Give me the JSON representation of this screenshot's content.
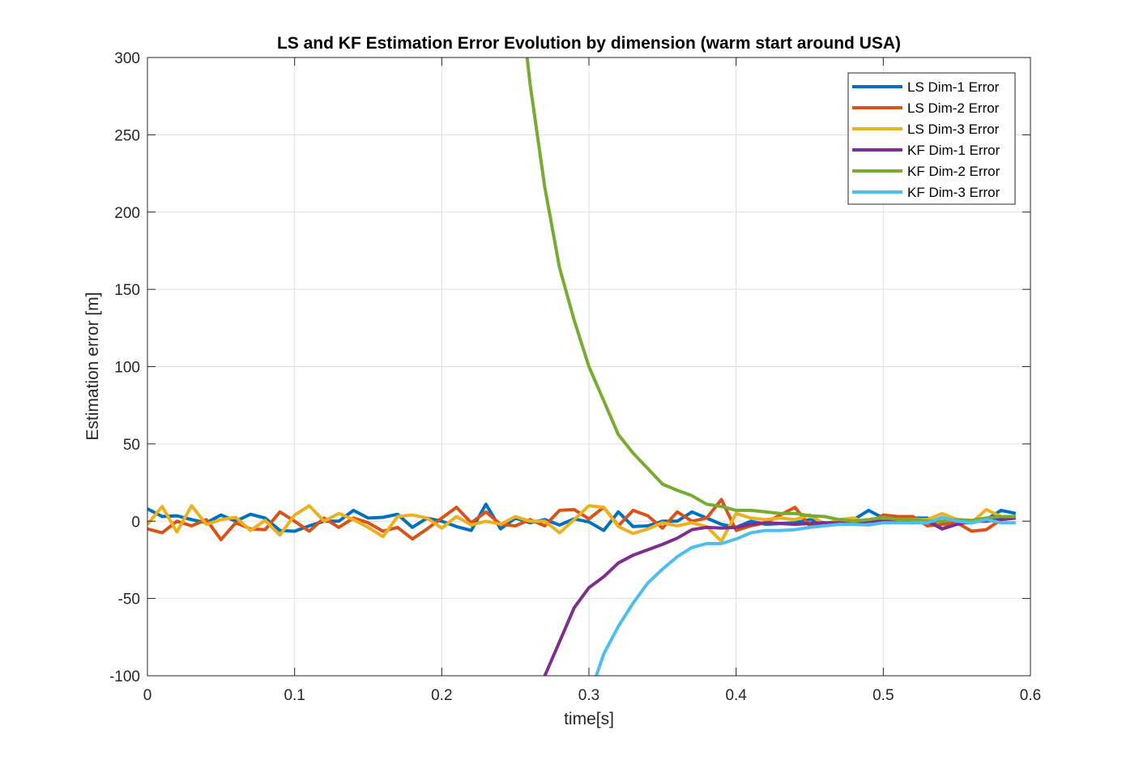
{
  "chart_data": {
    "type": "line",
    "title": "LS and KF Estimation Error Evolution by dimension (warm start around USA)",
    "xlabel": "time[s]",
    "ylabel": "Estimation error [m]",
    "xlim": [
      0,
      0.6
    ],
    "ylim": [
      -100,
      300
    ],
    "xticks": [
      0,
      0.1,
      0.2,
      0.3,
      0.4,
      0.5,
      0.6
    ],
    "yticks": [
      -100,
      -50,
      0,
      50,
      100,
      150,
      200,
      250,
      300
    ],
    "grid": true,
    "legend_position": "top-right",
    "x": [
      0,
      0.01,
      0.02,
      0.03,
      0.04,
      0.05,
      0.06,
      0.07,
      0.08,
      0.09,
      0.1,
      0.11,
      0.12,
      0.13,
      0.14,
      0.15,
      0.16,
      0.17,
      0.18,
      0.19,
      0.2,
      0.21,
      0.22,
      0.23,
      0.24,
      0.25,
      0.26,
      0.27,
      0.28,
      0.29,
      0.3,
      0.31,
      0.32,
      0.33,
      0.34,
      0.35,
      0.36,
      0.37,
      0.38,
      0.39,
      0.4,
      0.41,
      0.42,
      0.43,
      0.44,
      0.45,
      0.46,
      0.47,
      0.48,
      0.49,
      0.5,
      0.51,
      0.52,
      0.53,
      0.54,
      0.55,
      0.56,
      0.57,
      0.58,
      0.59
    ],
    "series": [
      {
        "name": "LS Dim-1 Error",
        "color": "#0072BD",
        "values": [
          8,
          3,
          3.5,
          1,
          -1,
          4,
          0,
          4.5,
          2,
          -6,
          -6.5,
          -3,
          0,
          0,
          7,
          2,
          2.5,
          4.5,
          -4,
          2,
          0,
          -3.5,
          -6,
          11,
          -5,
          2,
          -1,
          1,
          -2.5,
          1.5,
          -0.5,
          -6,
          6,
          -3.5,
          -3,
          0,
          0,
          6,
          2,
          -2,
          -4,
          0,
          -2,
          -1.5,
          -1,
          1,
          -1,
          -2,
          1,
          7,
          2,
          1.5,
          2,
          2,
          -5,
          -1,
          -1,
          1,
          7,
          5
        ]
      },
      {
        "name": "LS Dim-2 Error",
        "color": "#D95319",
        "values": [
          -5,
          -7.5,
          0,
          -3,
          1,
          -12,
          -1,
          -5,
          -5.5,
          6,
          0,
          -6.5,
          2,
          -4,
          2,
          -1,
          -6.5,
          -4,
          -11.5,
          -5,
          2,
          9,
          -1,
          6,
          -2,
          -3,
          1,
          -3,
          7,
          7.5,
          1.5,
          9,
          -3,
          7,
          3.5,
          -4.5,
          6,
          0,
          2,
          14,
          -6,
          -3,
          -1,
          4,
          9,
          -3,
          -2,
          -1,
          -1,
          -1.5,
          4,
          3,
          3,
          -3,
          -2,
          -1,
          -6.5,
          -5.5,
          1,
          3
        ]
      },
      {
        "name": "LS Dim-3 Error",
        "color": "#EDB120",
        "values": [
          -2,
          9.5,
          -7,
          10,
          -2,
          1,
          2.5,
          -6,
          0.5,
          -9,
          4,
          10,
          0,
          5,
          1,
          -4,
          -10,
          3,
          4,
          2,
          -4.5,
          3,
          -2.5,
          0,
          -2,
          3,
          0,
          0,
          -7.5,
          1,
          10,
          9,
          -3.5,
          -8,
          -5,
          -1,
          -3,
          -1,
          -3.5,
          -13,
          5,
          2,
          1,
          2,
          1,
          4,
          -2,
          1,
          2,
          -1.5,
          1,
          1,
          1,
          1,
          5,
          1,
          -1,
          7.5,
          3,
          2
        ]
      },
      {
        "name": "KF Dim-1 Error",
        "color": "#7E2F8E",
        "x": [
          0.27,
          0.28,
          0.29,
          0.3,
          0.31,
          0.32,
          0.33,
          0.34,
          0.35,
          0.36,
          0.37,
          0.38,
          0.39,
          0.4,
          0.41,
          0.42,
          0.43,
          0.44,
          0.45,
          0.46,
          0.47,
          0.48,
          0.49,
          0.5,
          0.51,
          0.52,
          0.53,
          0.54,
          0.55,
          0.56,
          0.57,
          0.58,
          0.59
        ],
        "values": [
          -100,
          -78,
          -56,
          -43,
          -36,
          -27,
          -22,
          -18.5,
          -15,
          -11,
          -5.5,
          -4,
          -4.5,
          -4,
          -2,
          -1,
          -1.5,
          -2,
          -1.5,
          -1,
          -1,
          -1.5,
          0,
          0,
          -0.5,
          -1,
          0,
          -5,
          -2,
          0,
          0,
          1,
          2
        ]
      },
      {
        "name": "KF Dim-2 Error",
        "color": "#77AC30",
        "x": [
          0.258,
          0.26,
          0.27,
          0.28,
          0.29,
          0.3,
          0.31,
          0.32,
          0.33,
          0.34,
          0.35,
          0.36,
          0.37,
          0.38,
          0.39,
          0.4,
          0.41,
          0.42,
          0.43,
          0.44,
          0.45,
          0.46,
          0.47,
          0.48,
          0.49,
          0.5,
          0.51,
          0.52,
          0.53,
          0.54,
          0.55,
          0.56,
          0.57,
          0.58,
          0.59
        ],
        "values": [
          300,
          283,
          216,
          164,
          130,
          100,
          78,
          56,
          44,
          34,
          24,
          20,
          16.5,
          11,
          9.5,
          7,
          7,
          6,
          5,
          5,
          3.5,
          3,
          1,
          0,
          1,
          2.5,
          1,
          1,
          0,
          0,
          1,
          0.5,
          2,
          3,
          3
        ]
      },
      {
        "name": "KF Dim-3 Error",
        "color": "#4DBEEE",
        "x": [
          0.305,
          0.31,
          0.32,
          0.33,
          0.34,
          0.35,
          0.36,
          0.37,
          0.38,
          0.39,
          0.4,
          0.41,
          0.42,
          0.43,
          0.44,
          0.45,
          0.46,
          0.47,
          0.48,
          0.49,
          0.5,
          0.51,
          0.52,
          0.53,
          0.54,
          0.55,
          0.56,
          0.57,
          0.58,
          0.59
        ],
        "values": [
          -100,
          -86,
          -68,
          -53,
          -40,
          -31,
          -23,
          -17,
          -14.5,
          -14.5,
          -11.5,
          -7.5,
          -6,
          -6,
          -5.5,
          -4,
          -3,
          -2,
          -2,
          -2.5,
          -1,
          -1,
          -1,
          -1,
          2.5,
          0,
          -1,
          1,
          -1,
          -1
        ]
      }
    ]
  }
}
